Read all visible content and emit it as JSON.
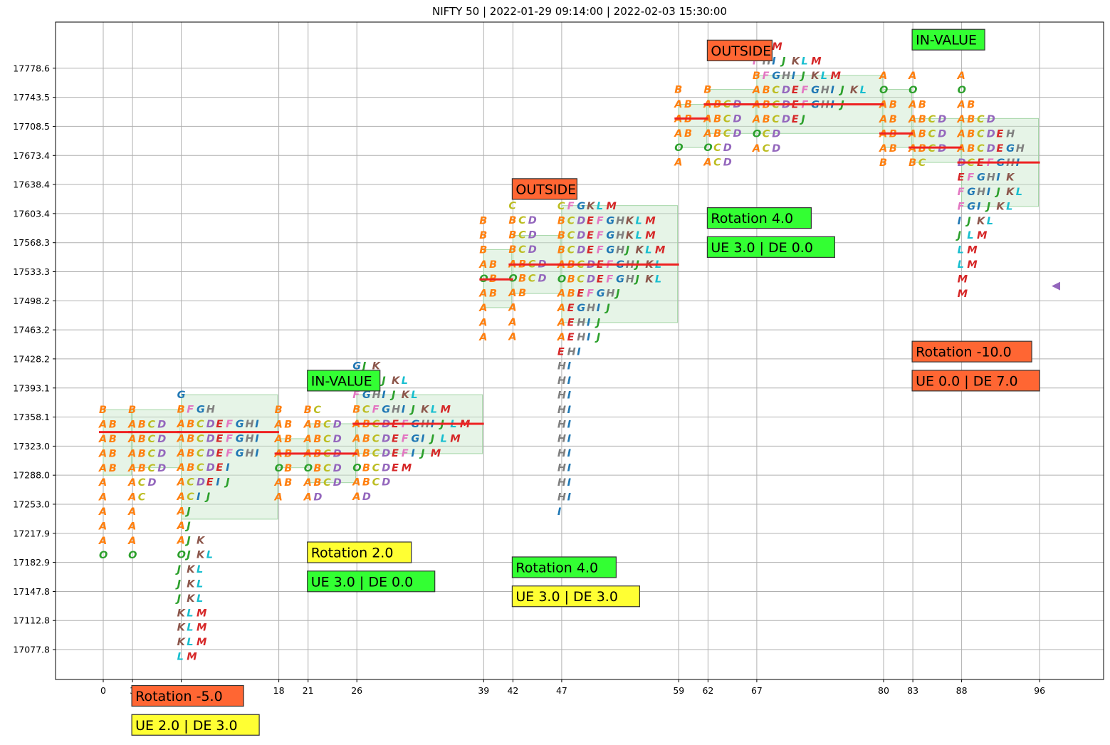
{
  "chart_data": {
    "type": "market-profile",
    "title": "NIFTY 50 | 2022-01-29 09:14:00 | 2022-02-03 15:30:00",
    "xlabel": "",
    "ylabel": "",
    "grid": true,
    "x_ticks": [
      0,
      3,
      8,
      18,
      21,
      26,
      39,
      42,
      47,
      59,
      62,
      67,
      80,
      83,
      88,
      96
    ],
    "y_ticks": [
      17077.8,
      17112.8,
      17147.8,
      17182.9,
      17217.9,
      17253.0,
      17288.0,
      17323.0,
      17358.1,
      17393.1,
      17428.2,
      17463.2,
      17498.2,
      17533.3,
      17568.3,
      17603.4,
      17638.4,
      17673.4,
      17708.5,
      17743.5,
      17778.6
    ],
    "xlim": [
      -5,
      102
    ],
    "ylim": [
      17042,
      17840
    ],
    "row_step": 17.52,
    "last_price": 17516,
    "colors": {
      "A": "#ff7f0e",
      "B": "#ff7f0e",
      "C": "#bcbd22",
      "D": "#9467bd",
      "E": "#d62728",
      "F": "#e377c2",
      "G": "#1f77b4",
      "H": "#7f7f7f",
      "I": "#1f77b4",
      "J": "#2ca02c",
      "K": "#8c564b",
      "L": "#17becf",
      "M": "#d62728",
      "O": "#2ca02c"
    },
    "profiles": [
      {
        "x": 0,
        "top": 17367,
        "poc": 17340,
        "va": [
          17288,
          17367
        ],
        "va_x2": 2,
        "rows": [
          "B",
          "AB",
          "AB",
          "AB",
          "AB",
          "A",
          "A",
          "A",
          "A",
          "A",
          "O"
        ]
      },
      {
        "x": 3,
        "top": 17367,
        "poc": 17340,
        "va": [
          17297,
          17367
        ],
        "va_x2": 7,
        "rows": [
          "B",
          "ABCD",
          "ABCD",
          "ABCD",
          "ABCD",
          "ACD",
          "AC",
          "A",
          "A",
          "A",
          "O"
        ]
      },
      {
        "x": 8,
        "top": 17385,
        "poc": 17340,
        "va": [
          17235,
          17385
        ],
        "va_x2": 17,
        "rows": [
          "G",
          "BFGH",
          "ABCDEFGHI",
          "ABCDEFGHI",
          "ABCDEFGHI",
          "ABCDEI",
          "ACDEIJ",
          "ACIJ",
          "AJ",
          "AJ",
          "AJK",
          "OJKL",
          "JKL",
          "JKL",
          "JKL",
          "KLM",
          "KLM",
          "KLM",
          "LM"
        ]
      },
      {
        "x": 18,
        "top": 17367,
        "poc": 17314,
        "va": [
          17297,
          17332
        ],
        "va_x2": 20,
        "rows": [
          "B",
          "AB",
          "AB",
          "AB",
          "OB",
          "AB",
          "A"
        ]
      },
      {
        "x": 21,
        "top": 17367,
        "poc": 17314,
        "va": [
          17279,
          17350
        ],
        "va_x2": 25,
        "rows": [
          "BC",
          "ABCD",
          "ABCD",
          "ABCD",
          "OBCD",
          "ABCD",
          "AD"
        ]
      },
      {
        "x": 26,
        "top": 17420,
        "poc": 17350,
        "va": [
          17314,
          17385
        ],
        "va_x2": 38,
        "rows": [
          "GJK",
          "GHIJKL",
          "FGHIJKL",
          "BCFGHIJKLM",
          "ABCDEFGHIJLM",
          "ABCDEFGIJLM",
          "ABCDEFIJM",
          "OBCDEM",
          "ABCD",
          "AD"
        ]
      },
      {
        "x": 39,
        "top": 17595,
        "poc": 17524,
        "va": [
          17490,
          17560
        ],
        "va_x2": 41,
        "rows": [
          "B",
          "B",
          "B",
          "AB",
          "OB",
          "AB",
          "A",
          "A",
          "A"
        ]
      },
      {
        "x": 42,
        "top": 17613,
        "poc": 17542,
        "va": [
          17507,
          17577
        ],
        "va_x2": 46,
        "rows": [
          "C",
          "BCD",
          "BCD",
          "BCD",
          "ABCD",
          "OBCD",
          "AB",
          "A",
          "A",
          "A"
        ]
      },
      {
        "x": 47,
        "top": 17630,
        "poc": 17542,
        "va": [
          17472,
          17613
        ],
        "va_x2": 58,
        "rows": [
          "G",
          "CFGKLM",
          "BCDEFGHKLM",
          "BCDEFGHKLM",
          "BCDEFGHJKLM",
          "ABCDEFGHJKL",
          "OBCDEFGHJKL",
          "ABEFGHJ",
          "AEGHIJ",
          "AEHIJ",
          "AEHIJ",
          "EHI",
          "HI",
          "HI",
          "HI",
          "HI",
          "HI",
          "HI",
          "HI",
          "HI",
          "HI",
          "HI",
          "I"
        ]
      },
      {
        "x": 59,
        "top": 17753,
        "poc": 17718,
        "va": [
          17683,
          17735
        ],
        "va_x2": 61,
        "rows": [
          "B",
          "AB",
          "AB",
          "AB",
          "O",
          "A"
        ]
      },
      {
        "x": 62,
        "top": 17753,
        "poc": 17735,
        "va": [
          17700,
          17753
        ],
        "va_x2": 66,
        "rows": [
          "B",
          "ABCD",
          "ABCD",
          "ABCD",
          "OCD",
          "ACD"
        ]
      },
      {
        "x": 67,
        "top": 17805,
        "poc": 17735,
        "va": [
          17700,
          17770
        ],
        "va_x2": 79,
        "rows": [
          "JKM",
          "FHIJKLM",
          "BFGHIJKLM",
          "ABCDEFGHIJKL",
          "ABCDEFGHIJ",
          "ABCDEJ",
          "OCD",
          "ACD"
        ]
      },
      {
        "x": 80,
        "top": 17770,
        "poc": 17700,
        "va": [
          17683,
          17753
        ],
        "va_x2": 82,
        "rows": [
          "A",
          "O",
          "AB",
          "AB",
          "AB",
          "AB",
          "B"
        ]
      },
      {
        "x": 83,
        "top": 17770,
        "poc": 17683,
        "va": [
          17665,
          17718
        ],
        "va_x2": 87,
        "rows": [
          "A",
          "O",
          "AB",
          "ABCD",
          "ABCD",
          "ABCD",
          "BC"
        ]
      },
      {
        "x": 88,
        "top": 17770,
        "poc": 17665,
        "va": [
          17612,
          17718
        ],
        "va_x2": 95,
        "rows": [
          "A",
          "O",
          "AB",
          "ABCD",
          "ABCDEH",
          "ABCDEGH",
          "DCEFGHI",
          "EFGHIK",
          "FGHIJKL",
          "FGIJKL",
          "IJKL",
          "JLM",
          "LM",
          "LM",
          "M",
          "M"
        ]
      }
    ],
    "annotations": [
      {
        "text": "Rotation -5.0",
        "x": 3.0,
        "y": 17022,
        "bg": "#ff6633"
      },
      {
        "text": "UE 2.0 | DE 3.0",
        "x": 3.0,
        "y": 16987,
        "bg": "#ffff33"
      },
      {
        "text": "IN-VALUE",
        "x": 21.0,
        "y": 17402,
        "bg": "#33ff33"
      },
      {
        "text": "Rotation 2.0",
        "x": 21.0,
        "y": 17195,
        "bg": "#ffff33"
      },
      {
        "text": "UE 3.0 | DE 0.0",
        "x": 21.0,
        "y": 17160,
        "bg": "#33ff33"
      },
      {
        "text": "OUTSIDE",
        "x": 42.0,
        "y": 17633,
        "bg": "#ff6633"
      },
      {
        "text": "Rotation 4.0",
        "x": 42.0,
        "y": 17177,
        "bg": "#33ff33"
      },
      {
        "text": "UE 3.0 | DE 3.0",
        "x": 42.0,
        "y": 17142,
        "bg": "#ffff33"
      },
      {
        "text": "OUTSIDE",
        "x": 62.0,
        "y": 17800,
        "bg": "#ff6633"
      },
      {
        "text": "Rotation 4.0",
        "x": 62.0,
        "y": 17598,
        "bg": "#33ff33"
      },
      {
        "text": "UE 3.0 | DE 0.0",
        "x": 62.0,
        "y": 17563,
        "bg": "#33ff33"
      },
      {
        "text": "IN-VALUE",
        "x": 83.0,
        "y": 17813,
        "bg": "#33ff33"
      },
      {
        "text": "Rotation -10.0",
        "x": 83.0,
        "y": 17437,
        "bg": "#ff6633"
      },
      {
        "text": "UE 0.0 | DE 7.0",
        "x": 83.0,
        "y": 17402,
        "bg": "#ff6633"
      }
    ]
  }
}
